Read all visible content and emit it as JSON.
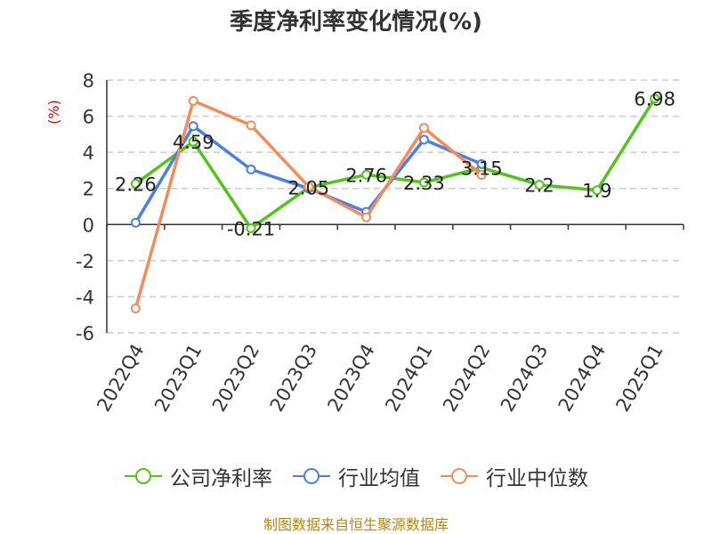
{
  "chart_data": {
    "type": "line",
    "title": "季度净利率变化情况(%)",
    "ylabel": "(%)",
    "xlabel": "",
    "categories": [
      "2022Q4",
      "2023Q1",
      "2023Q2",
      "2023Q3",
      "2023Q4",
      "2024Q1",
      "2024Q2",
      "2024Q3",
      "2024Q4",
      "2025Q1"
    ],
    "ylim": [
      -6,
      8
    ],
    "yticks": [
      8,
      6,
      4,
      2,
      0,
      -2,
      -4,
      -6
    ],
    "grid": true,
    "legend_position": "bottom",
    "series": [
      {
        "name": "公司净利率",
        "color": "#52c41a",
        "values": [
          2.26,
          4.59,
          -0.21,
          2.05,
          2.76,
          2.33,
          3.15,
          2.2,
          1.9,
          6.98
        ],
        "labels": [
          "2.26",
          "4.59",
          "-0.21",
          "2.05",
          "2.76",
          "2.33",
          "3.15",
          "2.2",
          "1.9",
          "6.98"
        ]
      },
      {
        "name": "行业均值",
        "color": "#4c7fe5",
        "values": [
          0.1,
          5.45,
          3.05,
          2.0,
          0.7,
          4.7,
          3.35,
          null,
          null,
          null
        ]
      },
      {
        "name": "行业中位数",
        "color": "#f68b5a",
        "values": [
          -4.65,
          6.85,
          5.5,
          2.1,
          0.4,
          5.35,
          2.75,
          null,
          null,
          null
        ]
      }
    ]
  },
  "source": "制图数据来自恒生聚源数据库"
}
